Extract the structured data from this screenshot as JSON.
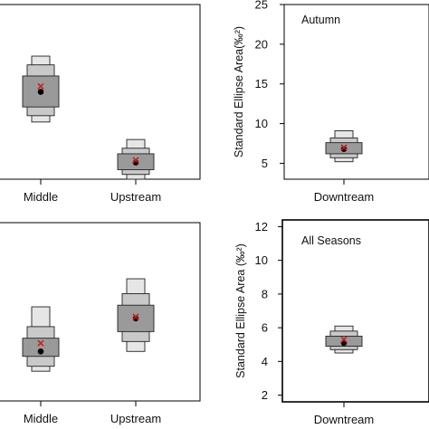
{
  "colors": {
    "box_dark": "#9a9a9a",
    "box_mid": "#c9c9c9",
    "box_light": "#e6e6e6",
    "mode_marker": "#d01c1c",
    "mean_marker": "#000000",
    "frame": "#000000"
  },
  "chart_data": [
    {
      "type": "box",
      "panel": "top-left (cropped)",
      "title": "",
      "ylabel": "",
      "ylim": [
        3,
        25
      ],
      "yticks": [],
      "categories": [
        "Middle",
        "Upstream"
      ],
      "series": [
        {
          "category": "Middle",
          "mean": 14.0,
          "mode": 14.7,
          "ci50": [
            12.1,
            16.0
          ],
          "ci75": [
            11.0,
            17.4
          ],
          "ci95": [
            10.2,
            18.5
          ]
        },
        {
          "category": "Upstream",
          "mean": 5.1,
          "mode": 5.4,
          "ci50": [
            4.2,
            6.2
          ],
          "ci75": [
            3.6,
            6.9
          ],
          "ci95": [
            3.0,
            8.0
          ]
        }
      ]
    },
    {
      "type": "box",
      "panel": "top-right",
      "annotation": "Autumn",
      "ylabel": "Standard Ellipse Area(‰²)",
      "ylim": [
        3,
        25
      ],
      "yticks": [
        5,
        10,
        15,
        20,
        25
      ],
      "categories": [
        "Downtream"
      ],
      "series": [
        {
          "category": "Downtream",
          "mean": 6.8,
          "mode": 7.0,
          "ci50": [
            6.2,
            7.6
          ],
          "ci75": [
            5.7,
            8.2
          ],
          "ci95": [
            5.2,
            9.1
          ]
        }
      ]
    },
    {
      "type": "box",
      "panel": "bottom-left (cropped)",
      "title": "",
      "ylabel": "",
      "ylim": [
        1.6,
        12.4
      ],
      "yticks": [],
      "categories": [
        "Middle",
        "Upstream"
      ],
      "series": [
        {
          "category": "Middle",
          "mean": 4.6,
          "mode": 5.1,
          "ci50": [
            4.3,
            5.4
          ],
          "ci75": [
            3.7,
            6.1
          ],
          "ci95": [
            3.4,
            7.3
          ]
        },
        {
          "category": "Upstream",
          "mean": 6.6,
          "mode": 6.7,
          "ci50": [
            5.8,
            7.4
          ],
          "ci75": [
            5.2,
            8.1
          ],
          "ci95": [
            4.6,
            9.0
          ]
        }
      ]
    },
    {
      "type": "box",
      "panel": "bottom-right",
      "annotation": "All Seasons",
      "ylabel": "Standard Ellipse Area (‰²)",
      "ylim": [
        1.6,
        12.4
      ],
      "yticks": [
        2,
        4,
        6,
        8,
        10,
        12
      ],
      "categories": [
        "Downtream"
      ],
      "series": [
        {
          "category": "Downtream",
          "mean": 5.1,
          "mode": 5.3,
          "ci50": [
            4.9,
            5.5
          ],
          "ci75": [
            4.7,
            5.8
          ],
          "ci95": [
            4.5,
            6.1
          ]
        }
      ]
    }
  ]
}
